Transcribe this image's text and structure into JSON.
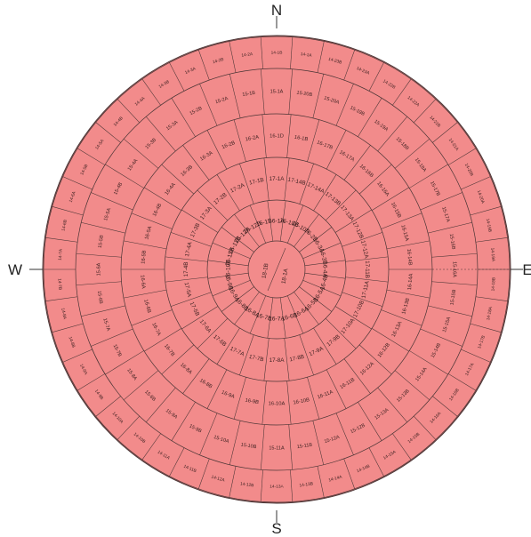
{
  "compass": {
    "north": "N",
    "south": "S",
    "east": "E",
    "west": "W"
  },
  "colors": {
    "fill": "#f28b8b",
    "line": "#4a3535",
    "label": "#3a1f1f",
    "compass": "#222222"
  },
  "diagram": {
    "center_labels": [
      "18-1B",
      "18-1A"
    ],
    "rings": [
      {
        "labels": [
          "16-1A",
          "16-18B",
          "16-10A",
          "16-2B",
          "16-3A",
          "16-3B",
          "16-4A",
          "16-4B",
          "16-5A",
          "16-5B",
          "16-6A",
          "16-6B",
          "16-7A",
          "16-7B",
          "16-8A",
          "16-8B",
          "16-9A",
          "16-9B",
          "16-10B",
          "16-11A",
          "16-11B",
          "16-12A",
          "16-12B",
          "16-1B"
        ]
      },
      {
        "labels": [
          "17-1A",
          "17-14B",
          "17-14A",
          "17-13B",
          "17-13A",
          "17-12B",
          "17-12A",
          "17-11B",
          "17-11A",
          "17-10B",
          "17-10A",
          "17-9B",
          "17-9A",
          "17-8B",
          "17-8A",
          "17-7B",
          "17-7A",
          "17-6B",
          "17-6A",
          "17-5B",
          "17-5A",
          "17-4B",
          "17-4A",
          "17-3B",
          "17-3A",
          "17-2B",
          "17-2A",
          "17-1B"
        ]
      },
      {
        "labels": [
          "16-1D",
          "16-1B",
          "16-17B",
          "16-17A",
          "16-16B",
          "16-16A",
          "16-15B",
          "16-15A",
          "16-14B",
          "16-14A",
          "16-13B",
          "16-13A",
          "16-12B",
          "16-12A",
          "16-11B",
          "16-11A",
          "16-10B",
          "16-10A",
          "16-9B",
          "16-9A",
          "16-8B",
          "16-8A",
          "16-7B",
          "16-7A",
          "16-6B",
          "16-6A",
          "16-5B",
          "16-5A",
          "16-4B",
          "16-4A",
          "16-3B",
          "16-3A",
          "16-2B",
          "16-2A"
        ]
      },
      {
        "labels": [
          "15-1A",
          "15-20B",
          "15-20A",
          "15-19B",
          "15-19A",
          "15-18B",
          "15-18A",
          "15-17B",
          "15-17A",
          "15-16B",
          "15-16A",
          "15-15B",
          "15-15A",
          "15-14B",
          "15-14A",
          "15-13B",
          "15-13A",
          "15-12B",
          "15-12A",
          "15-11B",
          "15-11A",
          "15-10B",
          "15-10A",
          "15-9B",
          "15-9A",
          "15-8B",
          "15-8A",
          "15-7B",
          "15-7A",
          "15-6B",
          "15-6A",
          "15-5B",
          "15-5A",
          "15-4B",
          "15-4A",
          "15-3B",
          "15-3A",
          "15-2B",
          "15-2A",
          "15-1B"
        ]
      },
      {
        "labels": [
          "14-1B",
          "14-1A",
          "14-23B",
          "14-23A",
          "14-22B",
          "14-22A",
          "14-21B",
          "14-21A",
          "14-20B",
          "14-20A",
          "14-19B",
          "14-19A",
          "14-18B",
          "14-18A",
          "14-17B",
          "14-17A",
          "14-16B",
          "14-16A",
          "14-15B",
          "14-15A",
          "14-14B",
          "14-14A",
          "14-13B",
          "14-13A",
          "14-12B",
          "14-12A",
          "14-11B",
          "14-11A",
          "14-10B",
          "14-10A",
          "14-9B",
          "14-9A",
          "14-8B",
          "14-8A",
          "14-7B",
          "14-7A",
          "14-6B",
          "14-6A",
          "14-5B",
          "14-5A",
          "14-4B",
          "14-4A",
          "14-3B",
          "14-3A",
          "14-2B",
          "14-2A"
        ]
      }
    ]
  }
}
